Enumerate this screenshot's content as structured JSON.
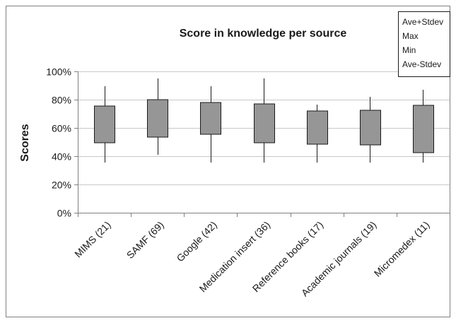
{
  "chart_data": {
    "type": "box",
    "title": "Score in knowledge per source",
    "ylabel": "Scores",
    "xlabel": "",
    "ylim": [
      0,
      100
    ],
    "yticks": [
      "0%",
      "20%",
      "40%",
      "60%",
      "80%",
      "100%"
    ],
    "ytick_values": [
      0,
      20,
      40,
      60,
      80,
      100
    ],
    "grid": true,
    "legend_position": "top-right",
    "legend": [
      "Ave+Stdev",
      "Max",
      "Min",
      "Ave-Stdev"
    ],
    "box_color": "#969696",
    "categories": [
      "MIMS (21)",
      "SAMF (69)",
      "Google (42)",
      "Medication insert (36)",
      "Reference books (17)",
      "Academic journals (19)",
      "Micromedex (11)"
    ],
    "series": [
      {
        "name": "Ave+Stdev",
        "values": [
          75.5,
          80,
          78,
          77,
          72,
          72.5,
          76
        ]
      },
      {
        "name": "Max",
        "values": [
          89.5,
          95,
          89.5,
          95,
          76.5,
          82,
          87
        ]
      },
      {
        "name": "Min",
        "values": [
          35.5,
          41,
          35.5,
          35.5,
          35.5,
          35.5,
          35.5
        ]
      },
      {
        "name": "Ave-Stdev",
        "values": [
          49.5,
          53.5,
          55.5,
          49.5,
          48.5,
          48,
          42.5
        ]
      }
    ]
  }
}
